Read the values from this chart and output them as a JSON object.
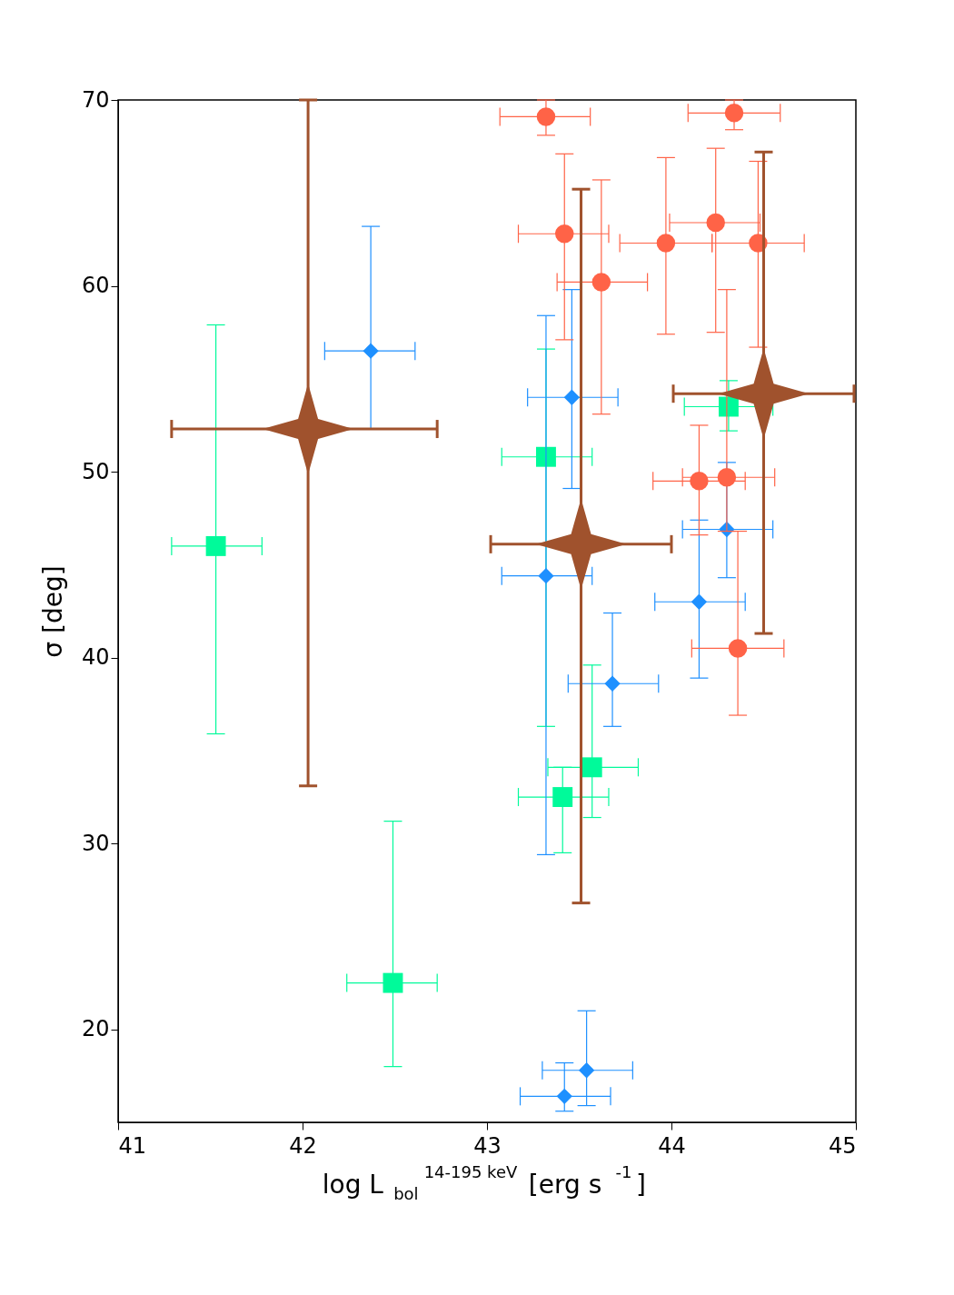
{
  "chart_data": {
    "type": "scatter",
    "xlabel": "log L$_{bol}$$^{14-195 keV}$ [erg s$^{-1}$]",
    "ylabel": "σ [deg]",
    "xlim": [
      41,
      45
    ],
    "xticks": [
      41,
      42,
      43,
      44,
      45
    ],
    "ylim": [
      15,
      70
    ],
    "yticks": [
      20,
      30,
      40,
      50,
      60,
      70
    ],
    "grid": false,
    "series": [
      {
        "type": "scatter",
        "marker": "square",
        "color": "#00fa9a",
        "x": [
          41.53,
          42.49,
          43.41,
          43.32,
          43.57,
          44.31
        ],
        "values": [
          46.0,
          22.5,
          32.5,
          50.8,
          34.1,
          53.5
        ],
        "errors": [
          [
            35.9,
            57.9
          ],
          [
            18.0,
            31.2
          ],
          [
            29.5,
            34.1
          ],
          [
            36.3,
            56.6
          ],
          [
            31.4,
            39.6
          ],
          [
            52.2,
            54.9
          ]
        ],
        "xerrors": [
          [
            41.29,
            41.78
          ],
          [
            42.24,
            42.73
          ],
          [
            43.17,
            43.66
          ],
          [
            43.08,
            43.57
          ],
          [
            43.33,
            43.82
          ],
          [
            44.07,
            44.55
          ]
        ]
      },
      {
        "type": "scatter",
        "marker": "diamond",
        "color": "#1e90ff",
        "x": [
          42.37,
          43.32,
          43.46,
          43.42,
          43.54,
          43.68,
          44.15,
          44.3
        ],
        "values": [
          56.5,
          44.4,
          54.0,
          16.4,
          17.8,
          38.6,
          43.0,
          46.9
        ],
        "errors": [
          [
            52.3,
            63.2
          ],
          [
            29.4,
            58.4
          ],
          [
            49.1,
            59.8
          ],
          [
            15.6,
            18.2
          ],
          [
            15.9,
            21.0
          ],
          [
            36.3,
            42.4
          ],
          [
            38.9,
            47.4
          ],
          [
            44.3,
            50.5
          ]
        ],
        "xerrors": [
          [
            42.12,
            42.61
          ],
          [
            43.08,
            43.57
          ],
          [
            43.22,
            43.71
          ],
          [
            43.18,
            43.67
          ],
          [
            43.3,
            43.79
          ],
          [
            43.44,
            43.93
          ],
          [
            43.91,
            44.4
          ],
          [
            44.06,
            44.55
          ]
        ]
      },
      {
        "type": "scatter",
        "marker": "circle",
        "color": "#ff6347",
        "x": [
          43.32,
          43.42,
          43.62,
          43.97,
          44.15,
          44.24,
          44.3,
          44.36,
          44.34,
          44.47
        ],
        "values": [
          69.1,
          62.8,
          60.2,
          62.3,
          49.5,
          63.4,
          49.7,
          40.5,
          69.3,
          62.3
        ],
        "errors": [
          [
            68.1,
            70.0
          ],
          [
            57.1,
            67.1
          ],
          [
            53.1,
            65.7
          ],
          [
            57.4,
            66.9
          ],
          [
            46.6,
            52.5
          ],
          [
            57.5,
            67.4
          ],
          [
            46.8,
            59.8
          ],
          [
            36.9,
            46.8
          ],
          [
            68.4,
            70.0
          ],
          [
            56.7,
            66.7
          ]
        ],
        "xerrors": [
          [
            43.07,
            43.56
          ],
          [
            43.17,
            43.66
          ],
          [
            43.38,
            43.87
          ],
          [
            43.72,
            44.22
          ],
          [
            43.9,
            44.4
          ],
          [
            43.99,
            44.48
          ],
          [
            44.06,
            44.56
          ],
          [
            44.11,
            44.61
          ],
          [
            44.09,
            44.59
          ],
          [
            44.22,
            44.72
          ]
        ]
      },
      {
        "type": "scatter",
        "marker": "star",
        "color": "#a0522d",
        "x": [
          42.03,
          43.51,
          44.5
        ],
        "values": [
          52.3,
          46.1,
          54.2
        ],
        "errors": [
          [
            33.1,
            70.0
          ],
          [
            26.8,
            65.2
          ],
          [
            41.3,
            67.2
          ]
        ],
        "xerrors": [
          [
            41.29,
            42.73
          ],
          [
            43.02,
            44.0
          ],
          [
            44.01,
            44.99
          ]
        ]
      }
    ]
  }
}
